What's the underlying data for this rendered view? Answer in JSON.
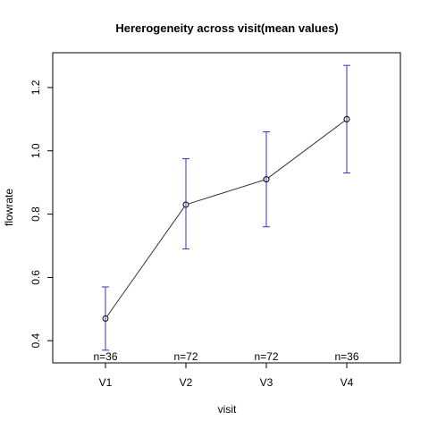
{
  "chart_data": {
    "type": "line",
    "title": "Hererogeneity across visit(mean values)",
    "xlabel": "visit",
    "ylabel": "flowrate",
    "categories": [
      "V1",
      "V2",
      "V3",
      "V4"
    ],
    "series": [
      {
        "values": [
          0.47,
          0.83,
          0.91,
          1.1
        ],
        "lower": [
          0.37,
          0.69,
          0.76,
          0.93
        ],
        "upper": [
          0.57,
          0.975,
          1.06,
          1.27
        ]
      }
    ],
    "counts": [
      "n=36",
      "n=72",
      "n=72",
      "n=36"
    ],
    "ylim": [
      0.33,
      1.31
    ],
    "yticks": [
      0.4,
      0.6,
      0.8,
      1.0,
      1.2
    ],
    "ytick_labels": [
      "0.4",
      "0.6",
      "0.8",
      "1.0",
      "1.2"
    ],
    "grid": false,
    "line_color": "#333333",
    "errorbar_color": "#3333cc",
    "marker": "open-circle"
  }
}
